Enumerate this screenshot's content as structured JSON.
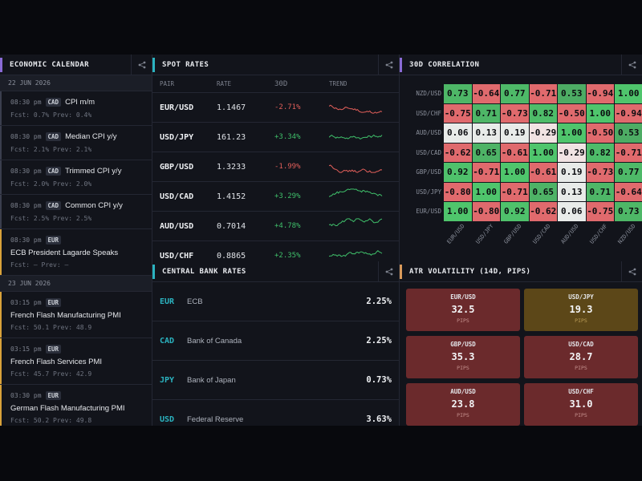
{
  "calendar": {
    "title": "ECONOMIC CALENDAR",
    "accent": "#8a6bd6",
    "groups": [
      {
        "date": "22 JUN 2026",
        "events": [
          {
            "time": "08:30 pm",
            "ccy": "CAD",
            "name": "CPI m/m",
            "fcst": "Fcst: 0.7%",
            "prev": "Prev: 0.4%",
            "bar": "#3a3e4d"
          },
          {
            "time": "08:30 pm",
            "ccy": "CAD",
            "name": "Median CPI y/y",
            "fcst": "Fcst: 2.1%",
            "prev": "Prev: 2.1%",
            "bar": "#3a3e4d"
          },
          {
            "time": "08:30 pm",
            "ccy": "CAD",
            "name": "Trimmed CPI y/y",
            "fcst": "Fcst: 2.0%",
            "prev": "Prev: 2.0%",
            "bar": "#3a3e4d"
          },
          {
            "time": "08:30 pm",
            "ccy": "CAD",
            "name": "Common CPI y/y",
            "fcst": "Fcst: 2.5%",
            "prev": "Prev: 2.5%",
            "bar": "#3a3e4d"
          },
          {
            "time": "08:30 pm",
            "ccy": "EUR",
            "name": "ECB President Lagarde Speaks",
            "fcst": "Fcst: –",
            "prev": "Prev: –",
            "bar": "#d9a23a"
          }
        ]
      },
      {
        "date": "23 JUN 2026",
        "events": [
          {
            "time": "03:15 pm",
            "ccy": "EUR",
            "name": "French Flash Manufacturing PMI",
            "fcst": "Fcst: 50.1",
            "prev": "Prev: 48.9",
            "bar": "#d9a23a"
          },
          {
            "time": "03:15 pm",
            "ccy": "EUR",
            "name": "French Flash Services PMI",
            "fcst": "Fcst: 45.7",
            "prev": "Prev: 42.9",
            "bar": "#d9a23a"
          },
          {
            "time": "03:30 pm",
            "ccy": "EUR",
            "name": "German Flash Manufacturing PMI",
            "fcst": "Fcst: 50.2",
            "prev": "Prev: 49.8",
            "bar": "#d9a23a"
          }
        ]
      }
    ]
  },
  "spot": {
    "title": "SPOT RATES",
    "accent": "#2bb3c0",
    "columns": {
      "pair": "PAIR",
      "rate": "RATE",
      "chg": "30D",
      "trend": "TREND"
    },
    "rows": [
      {
        "pair": "EUR/USD",
        "rate": "1.1467",
        "chg": "-2.71%",
        "dir": "dn"
      },
      {
        "pair": "USD/JPY",
        "rate": "161.23",
        "chg": "+3.34%",
        "dir": "up"
      },
      {
        "pair": "GBP/USD",
        "rate": "1.3233",
        "chg": "-1.99%",
        "dir": "dn"
      },
      {
        "pair": "USD/CAD",
        "rate": "1.4152",
        "chg": "+3.29%",
        "dir": "up"
      },
      {
        "pair": "AUD/USD",
        "rate": "0.7014",
        "chg": "+4.78%",
        "dir": "up"
      },
      {
        "pair": "USD/CHF",
        "rate": "0.8865",
        "chg": "+2.35%",
        "dir": "up"
      }
    ]
  },
  "correlation": {
    "title": "30D CORRELATION",
    "accent": "#8a6bd6",
    "row_labels": [
      "NZD/USD",
      "USD/CHF",
      "AUD/USD",
      "USD/CAD",
      "GBP/USD",
      "USD/JPY",
      "EUR/USD"
    ],
    "col_labels": [
      "EUR/USD",
      "USD/JPY",
      "GBP/USD",
      "USD/CAD",
      "AUD/USD",
      "USD/CHF",
      "NZD/USD"
    ],
    "values": [
      [
        0.73,
        -0.64,
        0.77,
        -0.71,
        0.53,
        -0.94,
        1.0
      ],
      [
        -0.75,
        0.71,
        -0.73,
        0.82,
        -0.5,
        1.0,
        -0.94
      ],
      [
        0.06,
        0.13,
        0.19,
        -0.29,
        1.0,
        -0.5,
        0.53
      ],
      [
        -0.62,
        0.65,
        -0.61,
        1.0,
        -0.29,
        0.82,
        -0.71
      ],
      [
        0.92,
        -0.71,
        1.0,
        -0.61,
        0.19,
        -0.73,
        0.77
      ],
      [
        -0.8,
        1.0,
        -0.71,
        0.65,
        0.13,
        0.71,
        -0.64
      ],
      [
        1.0,
        -0.8,
        0.92,
        -0.62,
        0.06,
        -0.75,
        0.73
      ]
    ],
    "labels": [
      [
        "0.73",
        "-0.64",
        "0.77",
        "-0.71",
        "0.53",
        "-0.94",
        "1.00"
      ],
      [
        "-0.75",
        "0.71",
        "-0.73",
        "0.82",
        "-0.50",
        "1.00",
        "-0.94"
      ],
      [
        "0.06",
        "0.13",
        "0.19",
        "-0.29",
        "1.00",
        "-0.50",
        "0.53"
      ],
      [
        "-0.62",
        "0.65",
        "-0.61",
        "1.00",
        "-0.29",
        "0.82",
        "-0.71"
      ],
      [
        "0.92",
        "-0.71",
        "1.00",
        "-0.61",
        "0.19",
        "-0.73",
        "0.77"
      ],
      [
        "-0.80",
        "1.00",
        "-0.71",
        "0.65",
        "0.13",
        "0.71",
        "-0.64"
      ],
      [
        "1.00",
        "-0.80",
        "0.92",
        "-0.62",
        "0.06",
        "-0.75",
        "0.73"
      ]
    ]
  },
  "central_banks": {
    "title": "CENTRAL BANK RATES",
    "accent": "#2bb3c0",
    "rows": [
      {
        "ccy": "EUR",
        "name": "ECB",
        "rate": "2.25%"
      },
      {
        "ccy": "CAD",
        "name": "Bank of Canada",
        "rate": "2.25%"
      },
      {
        "ccy": "JPY",
        "name": "Bank of Japan",
        "rate": "0.73%"
      },
      {
        "ccy": "USD",
        "name": "Federal Reserve",
        "rate": "3.63%"
      }
    ]
  },
  "atr": {
    "title": "ATR VOLATILITY (14D, PIPS)",
    "accent": "#d99a5a",
    "unit": "PIPS",
    "tiles": [
      {
        "pair": "EUR/USD",
        "value": "32.5",
        "level": "high"
      },
      {
        "pair": "USD/JPY",
        "value": "19.3",
        "level": "mid"
      },
      {
        "pair": "GBP/USD",
        "value": "35.3",
        "level": "high"
      },
      {
        "pair": "USD/CAD",
        "value": "28.7",
        "level": "high"
      },
      {
        "pair": "AUD/USD",
        "value": "23.8",
        "level": "high"
      },
      {
        "pair": "USD/CHF",
        "value": "31.0",
        "level": "high"
      }
    ]
  },
  "icons": {
    "share": "share-icon"
  },
  "colors": {
    "up": "#3fbf6a",
    "down": "#e25f5a",
    "corr_pos": "#4fc56c",
    "corr_neg": "#d9585d",
    "atr_high": "#6b2a2c",
    "atr_mid": "#5c4718"
  }
}
